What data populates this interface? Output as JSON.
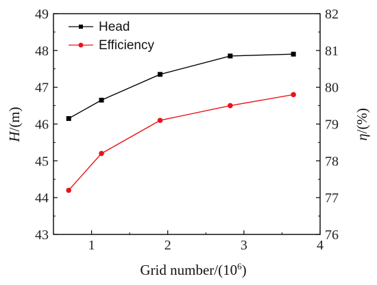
{
  "chart_data": {
    "type": "line",
    "x_axis": {
      "label_main": "Grid number/(10",
      "label_sup": "6",
      "label_end": ")",
      "lim": [
        0.5,
        4
      ],
      "ticks": [
        1,
        2,
        3,
        4
      ],
      "tick_labels": [
        "1",
        "2",
        "3",
        "4"
      ]
    },
    "y_axis_left": {
      "label_italic": "H",
      "label_rest": "/(m)",
      "lim": [
        43,
        49
      ],
      "ticks": [
        43,
        44,
        45,
        46,
        47,
        48,
        49
      ],
      "tick_labels": [
        "43",
        "44",
        "45",
        "46",
        "47",
        "48",
        "49"
      ]
    },
    "y_axis_right": {
      "label_italic": "η",
      "label_rest": "/(%)",
      "lim": [
        76,
        82
      ],
      "ticks": [
        76,
        77,
        78,
        79,
        80,
        81,
        82
      ],
      "tick_labels": [
        "76",
        "77",
        "78",
        "79",
        "80",
        "81",
        "82"
      ]
    },
    "x": [
      0.7,
      1.13,
      1.9,
      2.82,
      3.65
    ],
    "series": [
      {
        "name": "Head",
        "axis": "left",
        "marker": "square",
        "color": "#000000",
        "values": [
          46.15,
          46.65,
          47.35,
          47.85,
          47.9
        ]
      },
      {
        "name": "Efficiency",
        "axis": "right",
        "marker": "circle",
        "color": "#e8141b",
        "values": [
          77.2,
          78.2,
          79.1,
          79.5,
          79.8
        ]
      }
    ],
    "legend_position": "top-left",
    "grid": false
  }
}
